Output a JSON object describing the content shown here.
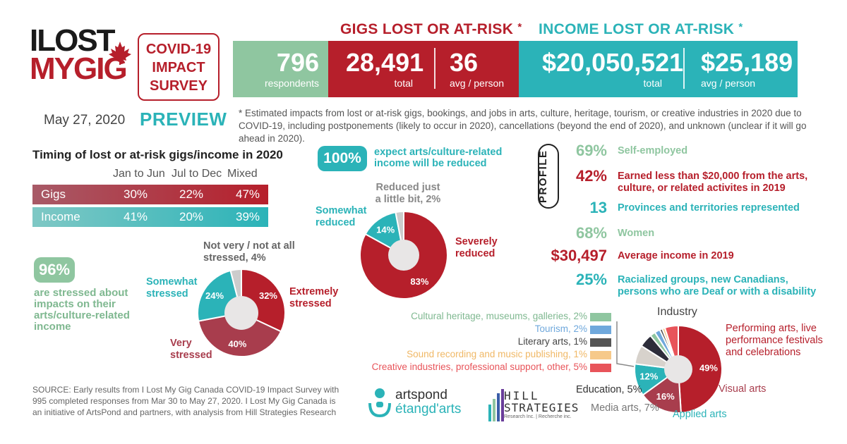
{
  "logo": {
    "line1": "ILOST",
    "line2": "MYGIG",
    "icon": "maple-leaf-icon"
  },
  "survey_title": {
    "l1": "COVID-19",
    "l2": "IMPACT",
    "l3": "SURVEY"
  },
  "date": "May 27, 2020",
  "preview": "PREVIEW",
  "gigs_title": "GIGS LOST OR AT-RISK",
  "income_title": "INCOME LOST OR AT-RISK",
  "asterisk": "*",
  "respondents": {
    "value": "796",
    "label": "respondents"
  },
  "gigs": {
    "total": "28,491",
    "total_label": "total",
    "avg": "36",
    "avg_label": "avg / person"
  },
  "income": {
    "total": "$20,050,521",
    "total_label": "total",
    "avg": "$25,189",
    "avg_label": "avg / person"
  },
  "footnote": "* Estimated impacts from lost or at-risk gigs, bookings, and jobs in arts, culture, heritage, tourism, or creative industries in 2020 due to COVID-19, including postponements (likely to occur in 2020), cancellations (beyond the end of 2020), and unknown (unclear if it will go ahead in 2020).",
  "colors": {
    "red": "#b61f2b",
    "teal": "#2bb3b8",
    "green": "#8fc6a0",
    "maroon": "#a83d4d"
  },
  "timing": {
    "title": "Timing of lost or at-risk gigs/income in 2020",
    "columns": [
      "Jan to Jun",
      "Jul to Dec",
      "Mixed"
    ],
    "rows": [
      {
        "label": "Gigs",
        "values": [
          "30%",
          "22%",
          "47%"
        ]
      },
      {
        "label": "Income",
        "values": [
          "41%",
          "20%",
          "39%"
        ]
      }
    ]
  },
  "stressed": {
    "pct": "96%",
    "text": "are stressed about impacts on their arts/culture-related income",
    "labels": {
      "extreme": "Extremely stressed",
      "very": "Very stressed",
      "somewhat": "Somewhat stressed",
      "not": "Not very / not at all stressed, 4%"
    }
  },
  "reduced": {
    "pct": "100%",
    "text": "expect arts/culture-related income will be reduced",
    "labels": {
      "severe": "Severely reduced",
      "somewhat": "Somewhat reduced",
      "little": "Reduced just a little bit, 2%"
    }
  },
  "profile": {
    "word": "PROFILE",
    "items": [
      {
        "value": "69%",
        "text": "Self-employed",
        "color": "#8fc6a0"
      },
      {
        "value": "42%",
        "text": "Earned less than $20,000 from the arts, culture, or related activites in 2019",
        "color": "#b61f2b"
      },
      {
        "value": "13",
        "text": "Provinces and territories represented",
        "color": "#2bb3b8"
      },
      {
        "value": "68%",
        "text": "Women",
        "color": "#8fc6a0"
      },
      {
        "value": "$30,497",
        "text": "Average income in 2019",
        "color": "#b61f2b"
      },
      {
        "value": "25%",
        "text": "Racialized groups, new Canadians, persons who are Deaf or with a disability",
        "color": "#2bb3b8"
      }
    ]
  },
  "industry": {
    "title": "Industry",
    "legend": [
      {
        "label": "Cultural heritage, museums, galleries, 2%",
        "color": "#8fc6a0"
      },
      {
        "label": "Tourism, 2%",
        "color": "#6fa8dc"
      },
      {
        "label": "Literary arts, 1%",
        "color": "#555555"
      },
      {
        "label": "Sound recording and music publishing, 1%",
        "color": "#f6c98a"
      },
      {
        "label": "Creative industries, professional support, other, 5%",
        "color": "#e8545a"
      }
    ],
    "labels": {
      "performing": "Performing arts, live performance festivals and celebrations",
      "visual": "Visual arts",
      "applied": "Applied arts",
      "media": "Media arts, 7%",
      "education": "Education, 5%"
    }
  },
  "chart_data": [
    {
      "type": "table",
      "title": "Timing of lost or at-risk gigs/income in 2020",
      "categories": [
        "Jan to Jun",
        "Jul to Dec",
        "Mixed"
      ],
      "series": [
        {
          "name": "Gigs",
          "values": [
            30,
            22,
            47
          ]
        },
        {
          "name": "Income",
          "values": [
            41,
            20,
            39
          ]
        }
      ]
    },
    {
      "type": "pie",
      "categories": [
        "Extremely stressed",
        "Very stressed",
        "Somewhat stressed",
        "Not very / not at all stressed"
      ],
      "values": [
        32,
        40,
        24,
        4
      ]
    },
    {
      "type": "pie",
      "categories": [
        "Severely reduced",
        "Somewhat reduced",
        "Reduced just a little bit"
      ],
      "values": [
        83,
        14,
        2
      ]
    },
    {
      "type": "pie",
      "title": "Industry",
      "categories": [
        "Performing arts, live performance festivals and celebrations",
        "Visual arts",
        "Applied arts",
        "Media arts",
        "Education",
        "Cultural heritage, museums, galleries",
        "Tourism",
        "Literary arts",
        "Sound recording and music publishing",
        "Creative industries, professional support, other"
      ],
      "values": [
        49,
        16,
        12,
        7,
        5,
        2,
        2,
        1,
        1,
        5
      ]
    }
  ],
  "source": "SOURCE: Early results from I Lost My Gig Canada COVID-19 Impact Survey with 995 completed responses from Mar 30 to May 27, 2020. I Lost My Gig Canada is an initiative of ArtsPond and partners, with analysis from Hill Strategies Research",
  "artspond": {
    "l1": "artspond",
    "l2": "étangd'arts"
  },
  "hill": {
    "l1": "HILL",
    "l2": "STRATEGIES",
    "l3": "Research Inc. | Recherche inc."
  }
}
